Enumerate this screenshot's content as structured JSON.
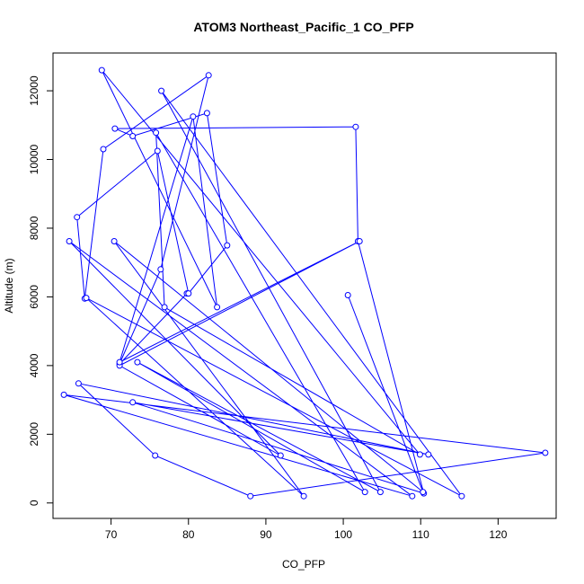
{
  "chart_data": {
    "type": "line",
    "title": "ATOM3 Northeast_Pacific_1 CO_PFP",
    "xlabel": "CO_PFP",
    "ylabel": "Altitude (m)",
    "xlim": [
      62.5,
      127.5
    ],
    "ylim": [
      -450,
      13100
    ],
    "x_ticks": [
      70,
      80,
      90,
      100,
      110,
      120
    ],
    "y_ticks": [
      0,
      2000,
      4000,
      6000,
      8000,
      10000,
      12000
    ],
    "grid": false,
    "legend": "none",
    "series": [
      {
        "color": "#0000ff",
        "marker": "open-circle",
        "x": [
          79.8,
          71.1,
          76.4,
          82.6,
          69.0,
          66.6,
          65.6,
          76.0,
          80.0,
          85.0,
          82.4,
          72.8,
          70.5,
          101.6,
          101.9,
          110.4,
          72.8,
          111.0,
          65.8,
          75.7,
          88.0,
          126.1,
          63.9,
          108.9,
          64.6,
          91.9,
          71.1,
          102.1,
          71.1,
          80.6,
          83.7,
          68.8,
          109.9,
          76.9,
          75.8,
          102.8,
          73.4,
          104.8,
          76.5,
          115.3,
          66.8,
          94.9,
          70.4,
          110.3,
          100.6
        ],
        "y": [
          6100,
          4050,
          6800,
          12450,
          10300,
          5950,
          8320,
          10250,
          6100,
          7500,
          11350,
          10680,
          10900,
          10950,
          7620,
          280,
          2930,
          1410,
          3480,
          1380,
          200,
          1460,
          3150,
          200,
          7620,
          1380,
          4000,
          7620,
          4100,
          11250,
          5700,
          12600,
          1410,
          5700,
          10780,
          320,
          4100,
          320,
          12000,
          200,
          5970,
          200,
          7620,
          320,
          6050
        ]
      }
    ]
  }
}
